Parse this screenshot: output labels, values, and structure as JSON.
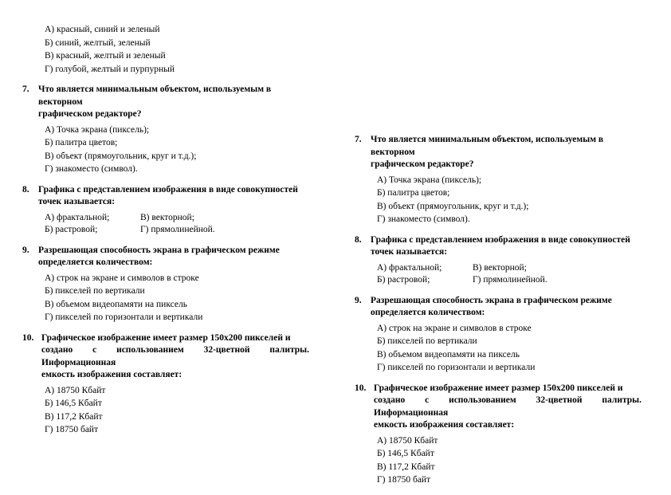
{
  "background_color": "#ffffff",
  "text_color": "#000000",
  "font_family": "Times New Roman",
  "base_fontsize_pt": 9,
  "left_column": {
    "leading_options": {
      "a": "А) красный, синий и зеленый",
      "b": "Б) синий, желтый, зеленый",
      "v": "В) красный, желтый и зеленый",
      "g": "Г) голубой, желтый и пурпурный"
    }
  },
  "shared": {
    "q7": {
      "num": "7.",
      "text_l1": "Что является минимальным объектом, используемым в векторном",
      "text_l2": "графическом редакторе?",
      "opts": {
        "a": "А) Точка экрана (пиксель);",
        "b": "Б) палитра цветов;",
        "v": "В) объект (прямоугольник, круг и т.д.);",
        "g": "Г) знакоместо (символ)."
      }
    },
    "q8": {
      "num": "8.",
      "text_l1": "Графика с представлением изображения в виде совокупностей",
      "text_l2": "точек называется:",
      "opts": {
        "a": "А) фрактальной;",
        "b": "Б) растровой;",
        "v": "В) векторной;",
        "g": "Г) прямолинейной."
      }
    },
    "q9": {
      "num": "9.",
      "text_l1": "Разрешающая способность экрана в графическом режиме",
      "text_l2": "определяется количеством:",
      "opts": {
        "a": "А) строк на экране и символов в строке",
        "b": "Б) пикселей по вертикали",
        "v": "В) объемом видеопамяти на пиксель",
        "g": "Г) пикселей по горизонтали и вертикали"
      }
    },
    "q10": {
      "num": "10.",
      "text_l1": "Графическое изображение имеет размер 150х200 пикселей и",
      "text_l2": "создано с использованием 32-цветной палитры. Информационная",
      "text_l3": "емкость изображения составляет:",
      "opts": {
        "a": "А) 18750 Кбайт",
        "b": "Б) 146,5 Кбайт",
        "v": "В) 117,2 Кбайт",
        "g": "Г) 18750 байт"
      }
    }
  }
}
